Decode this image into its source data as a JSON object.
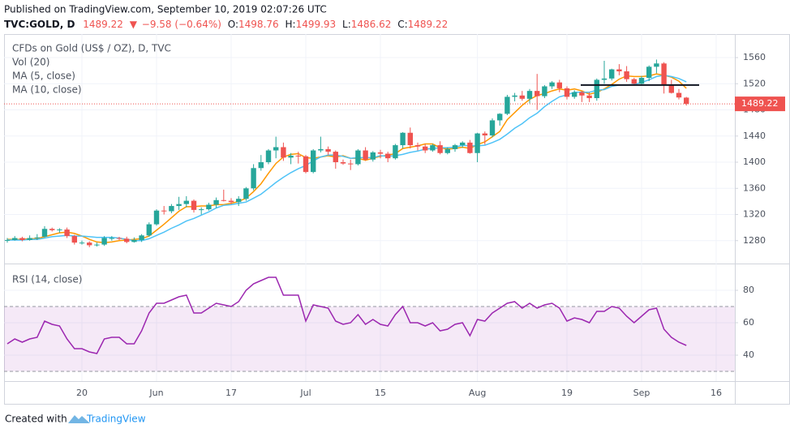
{
  "header": {
    "published": "Published on TradingView.com, September 10, 2019 02:07:26 UTC",
    "symbol": "TVC:GOLD, D",
    "change": "−9.58 (−0.64%)",
    "labels": [
      "O:",
      "H:",
      "L:",
      "C:"
    ]
  },
  "footer": {
    "created_with": "Created with",
    "brand": "TradingView"
  },
  "chart_data": [
    {
      "type": "candlestick",
      "title": "CFDs on Gold (US$ / OZ), D, TVC",
      "volume_label": "Vol (20)",
      "categories": [
        null,
        null,
        null,
        null,
        null,
        null,
        null,
        null,
        null,
        null,
        "20",
        null,
        null,
        null,
        null,
        null,
        null,
        null,
        null,
        null,
        "Jun",
        null,
        null,
        null,
        null,
        null,
        null,
        null,
        null,
        null,
        "17",
        null,
        null,
        null,
        null,
        null,
        null,
        null,
        null,
        null,
        "Jul",
        null,
        null,
        null,
        null,
        null,
        null,
        null,
        null,
        null,
        "15",
        null,
        null,
        null,
        null,
        null,
        null,
        null,
        null,
        null,
        null,
        null,
        null,
        "Aug",
        null,
        null,
        null,
        null,
        null,
        null,
        null,
        null,
        null,
        null,
        null,
        "19",
        null,
        null,
        null,
        null,
        null,
        null,
        null,
        null,
        null,
        "Sep",
        null,
        null,
        null,
        null,
        null,
        null,
        null,
        null,
        null,
        "16",
        null,
        null
      ],
      "open": [
        1280,
        1281,
        1284,
        1281,
        1284,
        1286,
        1298,
        1296,
        1297,
        1287,
        1277,
        1277,
        1273,
        1274,
        1284,
        1284,
        1283,
        1278,
        1281,
        1288,
        1305,
        1326,
        1325,
        1333,
        1336,
        1341,
        1327,
        1328,
        1335,
        1342,
        1341,
        1339,
        1344,
        1360,
        1391,
        1400,
        1418,
        1423,
        1407,
        1410,
        1409,
        1385,
        1418,
        1420,
        1416,
        1400,
        1398,
        1397,
        1418,
        1404,
        1415,
        1413,
        1406,
        1426,
        1445,
        1426,
        1424,
        1418,
        1426,
        1414,
        1420,
        1426,
        1430,
        1414,
        1444,
        1441,
        1464,
        1474,
        1500,
        1502,
        1497,
        1509,
        1501,
        1516,
        1522,
        1513,
        1500,
        1507,
        1502,
        1498,
        1526,
        1528,
        1542,
        1539,
        1527,
        1520,
        1529,
        1546,
        1551,
        1519,
        1506,
        1498.76,
        null,
        null,
        null,
        null,
        null,
        null
      ],
      "high": [
        1284,
        1287,
        1286,
        1288,
        1290,
        1302,
        1300,
        1299,
        1300,
        1289,
        1280,
        1279,
        1277,
        1287,
        1287,
        1286,
        1286,
        1285,
        1290,
        1308,
        1328,
        1333,
        1336,
        1347,
        1348,
        1343,
        1331,
        1338,
        1346,
        1358,
        1345,
        1348,
        1362,
        1397,
        1411,
        1420,
        1439,
        1430,
        1414,
        1416,
        1411,
        1420,
        1439,
        1424,
        1418,
        1404,
        1404,
        1420,
        1423,
        1417,
        1419,
        1416,
        1428,
        1446,
        1453,
        1430,
        1428,
        1428,
        1432,
        1423,
        1428,
        1432,
        1434,
        1445,
        1447,
        1467,
        1475,
        1503,
        1506,
        1509,
        1512,
        1535,
        1518,
        1524,
        1526,
        1516,
        1510,
        1509,
        1507,
        1528,
        1555,
        1543,
        1550,
        1547,
        1529,
        1532,
        1548,
        1557,
        1553,
        1526,
        1512,
        1499.93,
        null,
        null,
        null,
        null,
        null,
        null
      ],
      "low": [
        1277,
        1280,
        1279,
        1280,
        1281,
        1285,
        1294,
        1292,
        1284,
        1274,
        1274,
        1270,
        1271,
        1272,
        1280,
        1281,
        1276,
        1277,
        1278,
        1286,
        1303,
        1320,
        1322,
        1327,
        1331,
        1323,
        1320,
        1326,
        1330,
        1340,
        1336,
        1333,
        1341,
        1357,
        1387,
        1397,
        1406,
        1402,
        1397,
        1398,
        1383,
        1383,
        1415,
        1411,
        1390,
        1396,
        1388,
        1395,
        1402,
        1401,
        1406,
        1400,
        1404,
        1421,
        1421,
        1418,
        1414,
        1416,
        1412,
        1412,
        1416,
        1422,
        1413,
        1400,
        1427,
        1438,
        1456,
        1472,
        1493,
        1494,
        1490,
        1480,
        1498,
        1512,
        1507,
        1496,
        1497,
        1492,
        1492,
        1494,
        1520,
        1525,
        1533,
        1523,
        1517,
        1517,
        1524,
        1536,
        1505,
        1505,
        1496,
        1486.62,
        null,
        null,
        null,
        null,
        null,
        null
      ],
      "close": [
        1281,
        1284,
        1281,
        1284,
        1285,
        1298,
        1296,
        1297,
        1287,
        1277,
        1277,
        1273,
        1274,
        1284,
        1284,
        1283,
        1278,
        1281,
        1288,
        1305,
        1326,
        1325,
        1333,
        1336,
        1341,
        1327,
        1328,
        1335,
        1342,
        1341,
        1339,
        1344,
        1360,
        1391,
        1400,
        1418,
        1423,
        1407,
        1410,
        1409,
        1385,
        1418,
        1420,
        1416,
        1400,
        1398,
        1397,
        1418,
        1404,
        1415,
        1413,
        1406,
        1426,
        1445,
        1426,
        1424,
        1418,
        1426,
        1414,
        1420,
        1426,
        1430,
        1414,
        1444,
        1441,
        1464,
        1474,
        1500,
        1502,
        1497,
        1509,
        1501,
        1516,
        1522,
        1513,
        1500,
        1507,
        1502,
        1498,
        1526,
        1528,
        1542,
        1539,
        1527,
        1520,
        1529,
        1546,
        1551,
        1519,
        1506,
        1499,
        1489.22,
        null,
        null,
        null,
        null,
        null,
        null
      ],
      "up_color": "#26a69a",
      "down_color": "#ef5350",
      "last_price_color": "#ef5350",
      "series": [
        {
          "name": "MA (5, close)",
          "color": "#ff9800",
          "values": [
            1282,
            1282,
            1282,
            1283,
            1283,
            1286,
            1289,
            1292,
            1293,
            1291,
            1287,
            1282,
            1278,
            1277,
            1278,
            1280,
            1281,
            1282,
            1283,
            1287,
            1296,
            1305,
            1315,
            1325,
            1332,
            1332,
            1333,
            1333,
            1335,
            1335,
            1337,
            1340,
            1345,
            1355,
            1367,
            1383,
            1398,
            1408,
            1412,
            1413,
            1407,
            1406,
            1408,
            1410,
            1408,
            1410,
            1406,
            1406,
            1403,
            1406,
            1409,
            1411,
            1413,
            1421,
            1423,
            1425,
            1428,
            1428,
            1422,
            1420,
            1421,
            1423,
            1421,
            1427,
            1431,
            1439,
            1447,
            1465,
            1476,
            1487,
            1496,
            1502,
            1505,
            1509,
            1512,
            1510,
            1512,
            1509,
            1504,
            1507,
            1512,
            1519,
            1527,
            1532,
            1531,
            1531,
            1532,
            1535,
            1533,
            1530,
            1524,
            1513,
            null,
            null,
            null,
            null,
            null,
            null
          ]
        },
        {
          "name": "MA (10, close)",
          "color": "#4fc3f7",
          "values": [
            1281,
            1281,
            1281,
            1282,
            1282,
            1284,
            1286,
            1287,
            1288,
            1287,
            1287,
            1286,
            1285,
            1285,
            1285,
            1284,
            1282,
            1280,
            1280,
            1283,
            1288,
            1293,
            1299,
            1304,
            1310,
            1314,
            1319,
            1324,
            1330,
            1334,
            1335,
            1337,
            1339,
            1345,
            1351,
            1360,
            1369,
            1377,
            1384,
            1390,
            1395,
            1402,
            1408,
            1411,
            1411,
            1409,
            1406,
            1407,
            1407,
            1407,
            1410,
            1409,
            1410,
            1412,
            1415,
            1417,
            1420,
            1421,
            1422,
            1422,
            1423,
            1426,
            1425,
            1425,
            1426,
            1430,
            1435,
            1443,
            1452,
            1459,
            1468,
            1475,
            1485,
            1493,
            1500,
            1503,
            1507,
            1507,
            1507,
            1510,
            1511,
            1516,
            1518,
            1518,
            1519,
            1522,
            1526,
            1531,
            1533,
            1531,
            1528,
            1523,
            null,
            null,
            null,
            null,
            null,
            null
          ]
        }
      ],
      "horizontal_line": {
        "value": 1518,
        "color": "#131722"
      },
      "ylim": [
        1245,
        1596
      ],
      "yticks": [
        1280,
        1320,
        1360,
        1400,
        1440,
        1480,
        1520,
        1560
      ],
      "grid": true
    },
    {
      "type": "line",
      "title": "RSI (14, close)",
      "color": "#9c27b0",
      "values": [
        47,
        50,
        48,
        50,
        51,
        61,
        59,
        58,
        50,
        44,
        44,
        42,
        41,
        50,
        51,
        51,
        47,
        47,
        55,
        66,
        72,
        72,
        74,
        76,
        77,
        66,
        66,
        69,
        72,
        71,
        70,
        73,
        80,
        84,
        86,
        88,
        88,
        77,
        77,
        77,
        61,
        71,
        70,
        69,
        61,
        59,
        60,
        65,
        59,
        62,
        59,
        58,
        65,
        70,
        60,
        60,
        58,
        60,
        55,
        56,
        59,
        60,
        52,
        62,
        61,
        66,
        69,
        72,
        73,
        69,
        72,
        69,
        71,
        72,
        69,
        61,
        63,
        62,
        60,
        67,
        67,
        70,
        69,
        64,
        60,
        64,
        68,
        69,
        56,
        51,
        48,
        46,
        null,
        null,
        null,
        null,
        null,
        null
      ],
      "bands": [
        30,
        70
      ],
      "band_color": "#9c27b0",
      "ylim": [
        24,
        96.5
      ],
      "yticks": [
        40,
        60,
        80
      ],
      "grid": true
    }
  ]
}
